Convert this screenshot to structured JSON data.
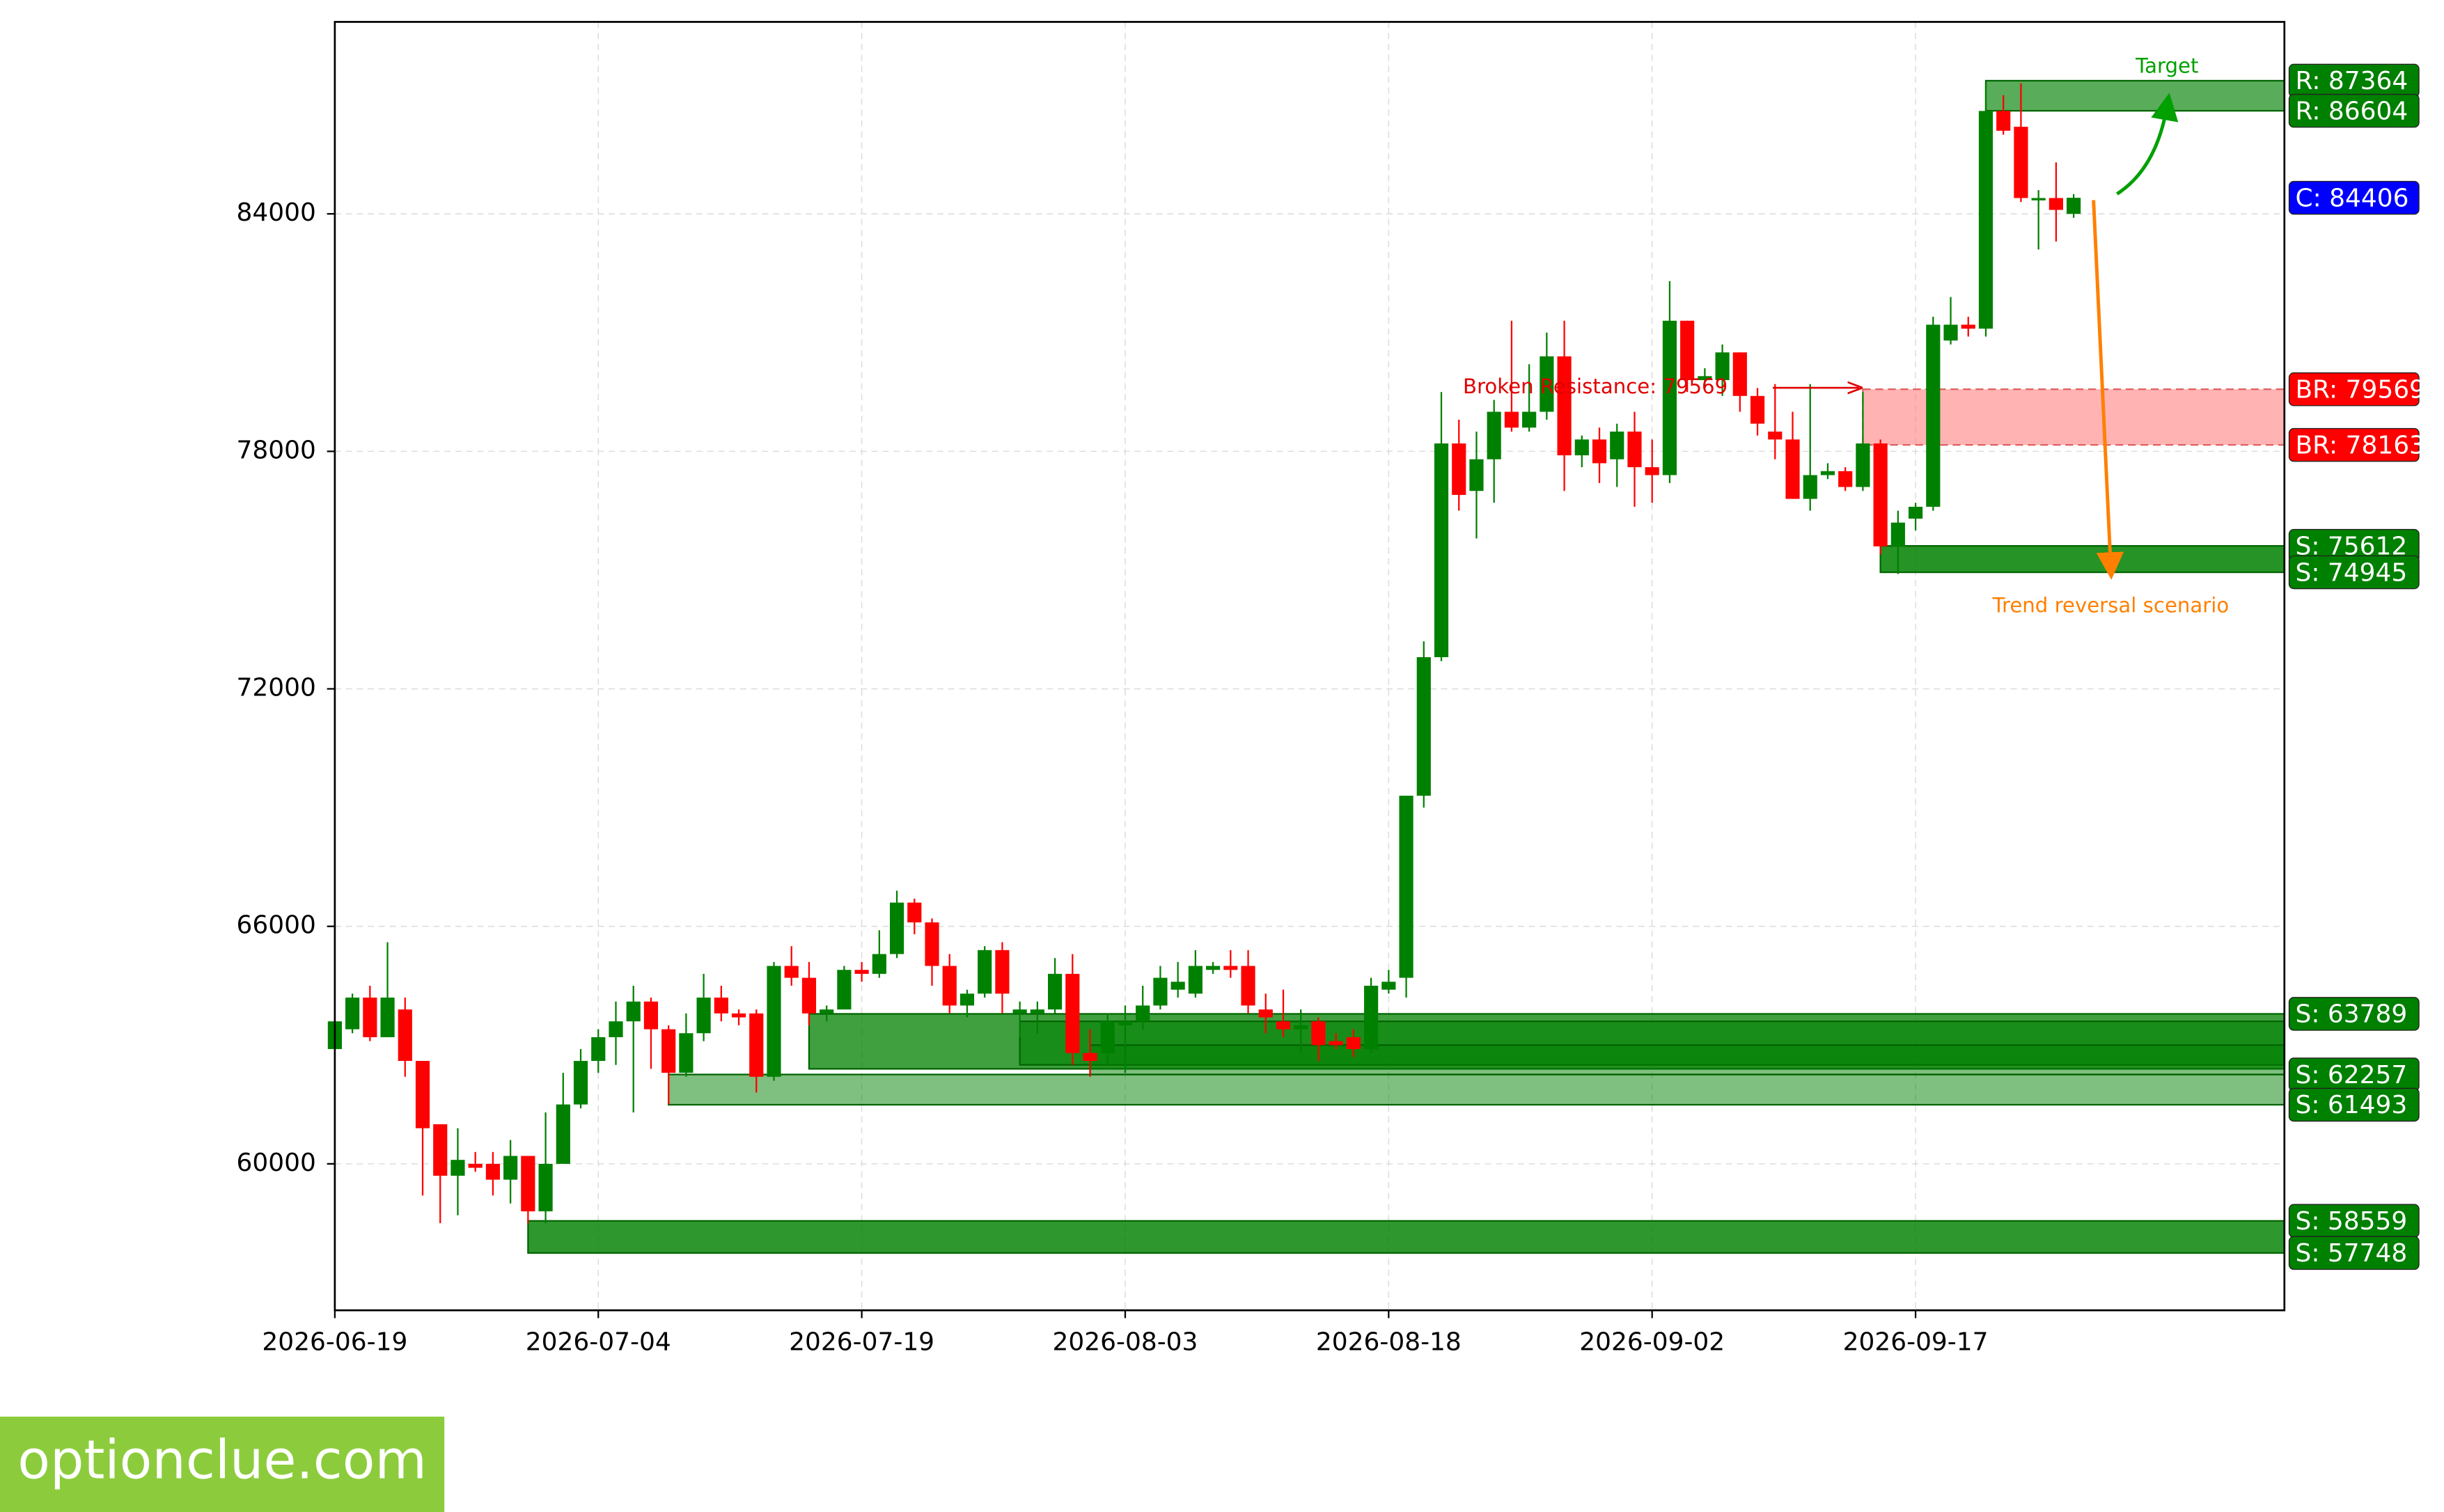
{
  "chart_data": {
    "type": "candlestick",
    "x": [
      "2026-06-19",
      "2026-06-20",
      "2026-06-21",
      "2026-06-22",
      "2026-06-23",
      "2026-06-24",
      "2026-06-25",
      "2026-06-26",
      "2026-06-27",
      "2026-06-28",
      "2026-06-29",
      "2026-06-30",
      "2026-07-01",
      "2026-07-02",
      "2026-07-03",
      "2026-07-04",
      "2026-07-05",
      "2026-07-06",
      "2026-07-07",
      "2026-07-08",
      "2026-07-09",
      "2026-07-10",
      "2026-07-11",
      "2026-07-12",
      "2026-07-13",
      "2026-07-14",
      "2026-07-15",
      "2026-07-16",
      "2026-07-17",
      "2026-07-18",
      "2026-07-19",
      "2026-07-20",
      "2026-07-21",
      "2026-07-22",
      "2026-07-23",
      "2026-07-24",
      "2026-07-25",
      "2026-07-26",
      "2026-07-27",
      "2026-07-28",
      "2026-07-29",
      "2026-07-30",
      "2026-07-31",
      "2026-08-01",
      "2026-08-02",
      "2026-08-03",
      "2026-08-04",
      "2026-08-05",
      "2026-08-06",
      "2026-08-07",
      "2026-08-08",
      "2026-08-09",
      "2026-08-10",
      "2026-08-11",
      "2026-08-12",
      "2026-08-13",
      "2026-08-14",
      "2026-08-15",
      "2026-08-16",
      "2026-08-17",
      "2026-08-18",
      "2026-08-19",
      "2026-08-20",
      "2026-08-21",
      "2026-08-22",
      "2026-08-23",
      "2026-08-24",
      "2026-08-25",
      "2026-08-26",
      "2026-08-27",
      "2026-08-28",
      "2026-08-29",
      "2026-08-30",
      "2026-08-31",
      "2026-09-01",
      "2026-09-02",
      "2026-09-03",
      "2026-09-04",
      "2026-09-05",
      "2026-09-06",
      "2026-09-07",
      "2026-09-08",
      "2026-09-09",
      "2026-09-10",
      "2026-09-11",
      "2026-09-12",
      "2026-09-13",
      "2026-09-14",
      "2026-09-15",
      "2026-09-16",
      "2026-09-17",
      "2026-09-18",
      "2026-09-19",
      "2026-09-20",
      "2026-09-21",
      "2026-09-22",
      "2026-09-23",
      "2026-09-24",
      "2026-09-25",
      "2026-09-26"
    ],
    "open": [
      62900,
      63400,
      64200,
      63200,
      63900,
      62600,
      61000,
      59700,
      60000,
      60000,
      59600,
      60200,
      58800,
      60000,
      61500,
      62600,
      63200,
      63600,
      64100,
      63400,
      62300,
      63300,
      64200,
      63800,
      63800,
      62200,
      65000,
      64700,
      63800,
      63900,
      64900,
      64800,
      65300,
      66600,
      66100,
      65000,
      64000,
      64300,
      65400,
      63800,
      63800,
      63900,
      64800,
      62800,
      62800,
      63500,
      63600,
      64000,
      64400,
      64300,
      64900,
      65000,
      65000,
      63900,
      63600,
      63400,
      63600,
      63100,
      63200,
      62900,
      64400,
      64700,
      69300,
      72800,
      78200,
      77000,
      77800,
      79000,
      78600,
      79000,
      80400,
      77900,
      78300,
      77800,
      78500,
      77600,
      77400,
      81300,
      79800,
      79800,
      80500,
      79400,
      78500,
      78300,
      76800,
      77400,
      77500,
      77100,
      78200,
      75600,
      76300,
      76600,
      80800,
      81200,
      81100,
      86600,
      86200,
      84400,
      84400,
      84000
    ],
    "high": [
      63700,
      64300,
      64500,
      65600,
      64200,
      62600,
      61000,
      60900,
      60300,
      60300,
      60600,
      60200,
      61300,
      62300,
      62900,
      63400,
      64100,
      64500,
      64200,
      63500,
      63800,
      64800,
      64500,
      63900,
      63900,
      65100,
      65500,
      65100,
      64000,
      65000,
      65100,
      65900,
      66900,
      66700,
      66200,
      65300,
      64400,
      65500,
      65600,
      64100,
      64100,
      65200,
      65300,
      63400,
      63800,
      64000,
      64500,
      65000,
      65100,
      65400,
      65100,
      65400,
      65400,
      64300,
      64400,
      63900,
      63700,
      63300,
      63400,
      64700,
      64900,
      69300,
      73200,
      79500,
      78800,
      78500,
      79300,
      81300,
      80200,
      81000,
      81300,
      78400,
      78600,
      78700,
      79000,
      78300,
      82300,
      81300,
      80100,
      80700,
      80500,
      79600,
      79700,
      79000,
      79700,
      77700,
      77600,
      79500,
      78300,
      76500,
      76700,
      81400,
      81900,
      81400,
      87300,
      87000,
      87300,
      84600,
      85300,
      84500
    ],
    "low": [
      62900,
      63300,
      63100,
      63200,
      62200,
      59200,
      58500,
      58700,
      59800,
      59200,
      59000,
      58500,
      58500,
      60000,
      61400,
      62300,
      62500,
      61300,
      62400,
      61500,
      62200,
      63100,
      63600,
      63500,
      61800,
      62100,
      64500,
      63500,
      63600,
      63900,
      64600,
      64700,
      65200,
      65800,
      64500,
      63800,
      63700,
      64200,
      63800,
      63200,
      63300,
      63800,
      62500,
      62200,
      62500,
      62300,
      63400,
      63900,
      64200,
      64200,
      64800,
      64700,
      63800,
      63300,
      63200,
      62800,
      62600,
      62900,
      62700,
      62800,
      64300,
      64200,
      69000,
      72700,
      76500,
      75800,
      76700,
      78500,
      78500,
      78800,
      77000,
      77600,
      77200,
      77100,
      76600,
      76700,
      77200,
      79500,
      79600,
      79400,
      79000,
      78400,
      77800,
      76800,
      76500,
      77300,
      77000,
      77000,
      75400,
      74900,
      76000,
      76500,
      80700,
      80900,
      80900,
      86000,
      84300,
      83100,
      83300,
      83900
    ],
    "close": [
      63600,
      64200,
      63200,
      64200,
      62600,
      60900,
      59700,
      60100,
      59900,
      59600,
      60200,
      58800,
      60000,
      61500,
      62600,
      63200,
      63600,
      64100,
      63400,
      62300,
      63300,
      64200,
      63800,
      63700,
      62200,
      65000,
      64700,
      63800,
      63900,
      64900,
      64800,
      65300,
      66600,
      66100,
      65000,
      64000,
      64300,
      65400,
      64300,
      63900,
      63900,
      64800,
      62800,
      62600,
      63600,
      63600,
      64000,
      64700,
      64600,
      65000,
      65000,
      64900,
      64000,
      63700,
      63400,
      63500,
      63000,
      63000,
      62900,
      64500,
      64600,
      69300,
      72800,
      78200,
      76900,
      77800,
      79000,
      78600,
      79000,
      80400,
      77900,
      78300,
      77700,
      78500,
      77600,
      77400,
      81300,
      79800,
      79900,
      80500,
      79400,
      78700,
      78300,
      76800,
      77400,
      77500,
      77100,
      78200,
      75600,
      76200,
      76600,
      81200,
      81200,
      81100,
      86600,
      86100,
      84400,
      84400,
      84100,
      84406
    ],
    "up_color": "#008000",
    "down_color": "#ff0000",
    "xlim": [
      "2026-06-19",
      "2026-10-08"
    ],
    "xticks": [
      "2026-06-19",
      "2026-07-04",
      "2026-07-19",
      "2026-08-03",
      "2026-08-18",
      "2026-09-02",
      "2026-09-17"
    ],
    "ylim": [
      56300,
      88850
    ],
    "yticks": [
      60000,
      66000,
      72000,
      78000,
      84000
    ],
    "grid": true,
    "zones": [
      {
        "start": "2026-06-30",
        "low": 57748,
        "high": 58559,
        "color": "#008000",
        "opacity": 0.82
      },
      {
        "start": "2026-07-08",
        "low": 61493,
        "high": 62257,
        "color": "#008000",
        "opacity": 0.5
      },
      {
        "start": "2026-07-16",
        "low": 62400,
        "high": 63789,
        "color": "#008000",
        "opacity": 0.75
      },
      {
        "start": "2026-07-28",
        "low": 62500,
        "high": 63600,
        "color": "#008000",
        "opacity": 0.6
      },
      {
        "start": "2026-08-01",
        "low": 62257,
        "high": 63000,
        "color": "#008000",
        "opacity": 0.5
      },
      {
        "start": "2026-09-14",
        "low": 78163,
        "high": 79569,
        "color": "#ff8080",
        "opacity": 0.6
      },
      {
        "start": "2026-09-15",
        "low": 74945,
        "high": 75612,
        "color": "#008000",
        "opacity": 0.85
      },
      {
        "start": "2026-09-21",
        "low": 86604,
        "high": 87364,
        "color": "#008000",
        "opacity": 0.65
      }
    ],
    "price_labels": [
      {
        "label": "R: 87364",
        "value": 87364,
        "color": "#008000"
      },
      {
        "label": "R: 86604",
        "value": 86604,
        "color": "#008000"
      },
      {
        "label": "C: 84406",
        "value": 84406,
        "color": "#0000ff"
      },
      {
        "label": "BR: 79569",
        "value": 79569,
        "color": "#ff0000"
      },
      {
        "label": "BR: 78163",
        "value": 78163,
        "color": "#ff0000"
      },
      {
        "label": "S: 75612",
        "value": 75612,
        "color": "#008000"
      },
      {
        "label": "S: 74945",
        "value": 74945,
        "color": "#008000"
      },
      {
        "label": "S: 63789",
        "value": 63789,
        "color": "#008000"
      },
      {
        "label": "S: 62257",
        "value": 62257,
        "color": "#008000"
      },
      {
        "label": "S: 61493",
        "value": 61493,
        "color": "#008000"
      },
      {
        "label": "S: 58559",
        "value": 58559,
        "color": "#008000"
      },
      {
        "label": "S: 57748",
        "value": 57748,
        "color": "#008000"
      }
    ],
    "annotations": {
      "target": "Target",
      "broken": "Broken Resistance: 79569",
      "reversal": "Trend reversal scenario"
    },
    "watermark": "optionclue.com"
  }
}
